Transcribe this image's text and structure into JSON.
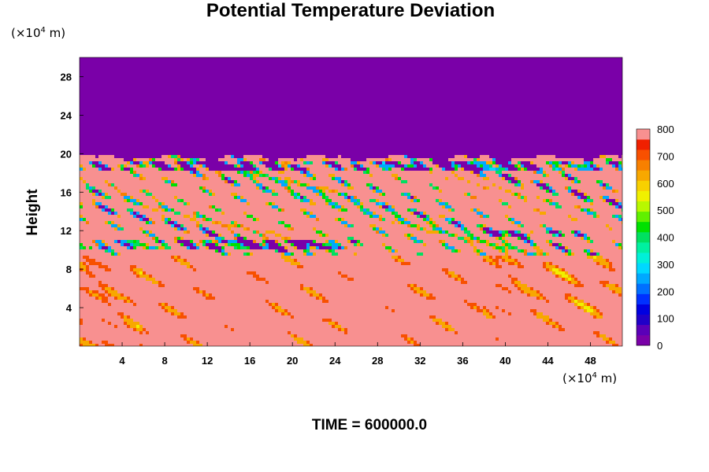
{
  "chart_data": {
    "type": "heatmap",
    "title": "Potential Temperature Deviation",
    "ylabel": "Height",
    "x_unit": "(×10⁴ m)",
    "y_unit": "(×10⁴ m)",
    "unit_base": "(×10",
    "unit_exp": "4",
    "unit_tail": " m)",
    "xlim": [
      0,
      51
    ],
    "ylim": [
      0,
      30
    ],
    "x_ticks": [
      "4",
      "8",
      "12",
      "16",
      "20",
      "24",
      "28",
      "32",
      "36",
      "40",
      "44",
      "48"
    ],
    "x_tick_values": [
      4,
      8,
      12,
      16,
      20,
      24,
      28,
      32,
      36,
      40,
      44,
      48
    ],
    "y_ticks": [
      "4",
      "8",
      "12",
      "16",
      "20",
      "24",
      "28"
    ],
    "y_tick_values": [
      4,
      8,
      12,
      16,
      20,
      24,
      28
    ],
    "colorbar": {
      "min": 0,
      "max": 800,
      "step": 40,
      "tick_labels": [
        "0",
        "100",
        "200",
        "300",
        "400",
        "500",
        "600",
        "700",
        "800"
      ],
      "tick_values": [
        0,
        100,
        200,
        300,
        400,
        500,
        600,
        700,
        800
      ],
      "colors": [
        "#7a00a8",
        "#5a00b8",
        "#2000c8",
        "#0000e0",
        "#0030ff",
        "#0070ff",
        "#00a8ff",
        "#00d8ff",
        "#00f0d8",
        "#00f0a0",
        "#00e060",
        "#00e000",
        "#60f000",
        "#b8f800",
        "#f0f000",
        "#f8d000",
        "#f8a800",
        "#f88000",
        "#f85000",
        "#f02000",
        "#f89090"
      ]
    },
    "regions": [
      {
        "description_value": 0,
        "y_range": [
          19.6,
          30
        ]
      },
      {
        "description_value": 800,
        "y_range": [
          0,
          19.6
        ]
      }
    ],
    "grid": false
  },
  "footer": {
    "time": "TIME = 600000.0"
  }
}
